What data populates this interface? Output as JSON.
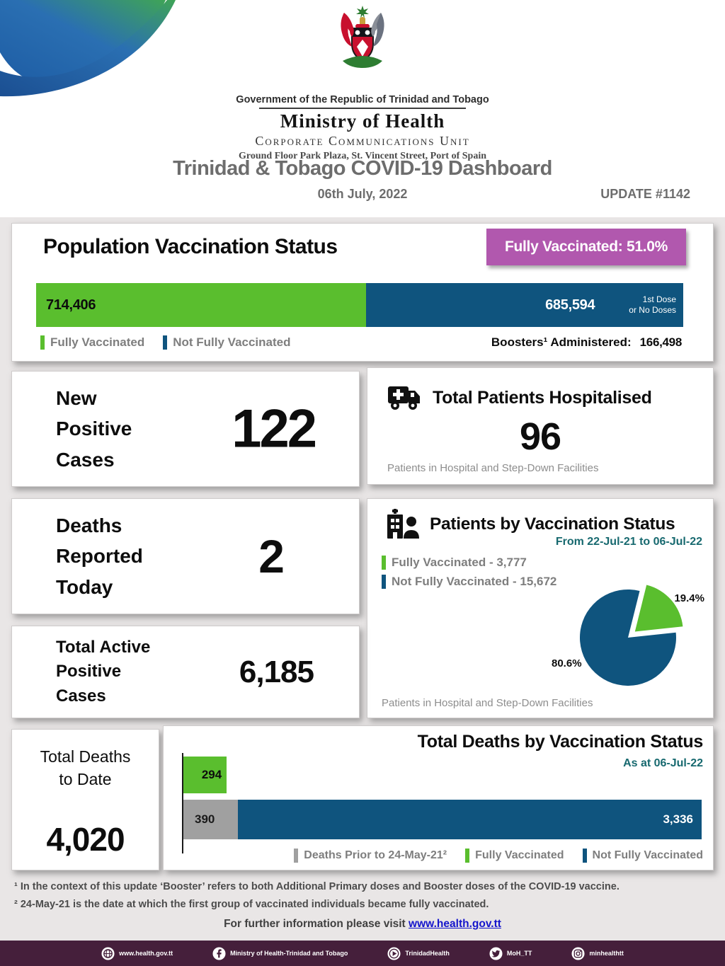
{
  "header": {
    "government_line": "Government of the Republic of Trinidad and Tobago",
    "ministry": "Ministry of Health",
    "unit": "Corporate Communications Unit",
    "address": "Ground Floor Park Plaza, St. Vincent Street, Port of Spain"
  },
  "titlebar": {
    "title": "Trinidad & Tobago COVID-19 Dashboard",
    "date": "06th July, 2022",
    "update": "UPDATE #1142"
  },
  "population": {
    "heading": "Population Vaccination Status",
    "badge": "Fully Vaccinated:  51.0%",
    "fully_value": "714,406",
    "not_fully_value": "685,594",
    "first_dose_line1": "1st Dose",
    "first_dose_line2": "or No Doses",
    "legend_fully": "Fully Vaccinated",
    "legend_not_fully": "Not Fully Vaccinated",
    "boosters_label": "Boosters¹ Administered:",
    "boosters_value": "166,498"
  },
  "new_cases": {
    "line1": "New",
    "line2": "Positive",
    "line3": "Cases",
    "value": "122"
  },
  "hospitalised": {
    "title": "Total Patients Hospitalised",
    "value": "96",
    "caption": "Patients in Hospital and Step-Down Facilities"
  },
  "deaths_today": {
    "line1": "Deaths",
    "line2": "Reported",
    "line3": "Today",
    "value": "2"
  },
  "patients_status": {
    "title": "Patients by Vaccination Status",
    "period": "From 22-Jul-21 to 06-Jul-22",
    "legend_fully": "Fully Vaccinated - 3,777",
    "legend_not_fully": "Not Fully Vaccinated - 15,672",
    "pie_fully_pct": "19.4%",
    "pie_not_fully_pct": "80.6%",
    "caption": "Patients in Hospital and Step-Down Facilities"
  },
  "active_cases": {
    "line1": "Total Active",
    "line2": "Positive",
    "line3": "Cases",
    "value": "6,185"
  },
  "total_deaths": {
    "line1": "Total Deaths",
    "line2": "to Date",
    "value": "4,020"
  },
  "deaths_chart": {
    "title": "Total Deaths by Vaccination Status",
    "as_at": "As at 06-Jul-22",
    "fully_label": "294",
    "prior_label": "390",
    "not_fully_label": "3,336",
    "legend_prior": "Deaths Prior to 24-May-21²",
    "legend_fully": "Fully Vaccinated",
    "legend_not_fully": "Not Fully Vaccinated"
  },
  "footnotes": {
    "line1": "¹ In the context of this update ‘Booster’ refers to both Additional Primary doses and Booster doses of the COVID-19 vaccine.",
    "line2": "² 24-May-21 is the date at which the first group of vaccinated individuals became fully vaccinated."
  },
  "footer": {
    "info_prefix": "For further information please visit ",
    "link": "www.health.gov.tt",
    "social": [
      {
        "icon": "globe-icon",
        "label": "www.health.gov.tt"
      },
      {
        "icon": "facebook-icon",
        "label": "Ministry of Health-Trinidad and Tobago"
      },
      {
        "icon": "youtube-icon",
        "label": "TrinidadHealth"
      },
      {
        "icon": "twitter-icon",
        "label": "MoH_TT"
      },
      {
        "icon": "instagram-icon",
        "label": "minhealthtt"
      }
    ]
  },
  "colors": {
    "green": "#5abe2e",
    "blue": "#0f547e",
    "purple": "#b158ae",
    "teal": "#17696f",
    "gray_bar": "#a0a0a0",
    "maroon": "#451f3b"
  },
  "chart_data": [
    {
      "type": "bar",
      "title": "Population Vaccination Status",
      "orientation": "horizontal-stacked",
      "categories": [
        "Fully Vaccinated",
        "Not Fully Vaccinated (1st Dose or No Doses)"
      ],
      "values": [
        714406,
        685594
      ],
      "fully_vaccinated_pct": 51.0,
      "boosters_administered": 166498,
      "legend_position": "bottom"
    },
    {
      "type": "pie",
      "title": "Patients by Vaccination Status",
      "period": "From 22-Jul-21 to 06-Jul-22",
      "labels": [
        "Fully Vaccinated",
        "Not Fully Vaccinated"
      ],
      "values": [
        3777,
        15672
      ],
      "percents": [
        19.4,
        80.6
      ],
      "exploded_slice": "Fully Vaccinated",
      "caption": "Patients in Hospital and Step-Down Facilities"
    },
    {
      "type": "bar",
      "title": "Total Deaths by Vaccination Status",
      "as_at": "As at 06-Jul-22",
      "orientation": "horizontal",
      "categories": [
        "Fully Vaccinated",
        "Deaths Prior to 24-May-21",
        "Not Fully Vaccinated"
      ],
      "values": [
        294,
        390,
        3336
      ],
      "stacked_rows": [
        [
          "Fully Vaccinated"
        ],
        [
          "Deaths Prior to 24-May-21",
          "Not Fully Vaccinated"
        ]
      ],
      "total_deaths_to_date": 4020,
      "legend_position": "bottom-right"
    }
  ]
}
